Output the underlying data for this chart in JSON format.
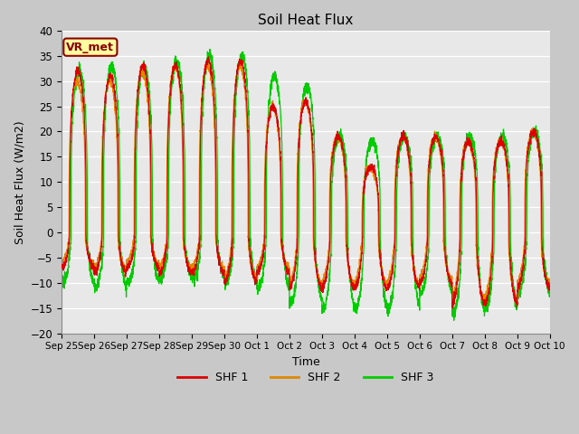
{
  "title": "Soil Heat Flux",
  "xlabel": "Time",
  "ylabel": "Soil Heat Flux (W/m2)",
  "ylim": [
    -20,
    40
  ],
  "yticks": [
    -20,
    -15,
    -10,
    -5,
    0,
    5,
    10,
    15,
    20,
    25,
    30,
    35,
    40
  ],
  "legend_label": "VR_met",
  "series_labels": [
    "SHF 1",
    "SHF 2",
    "SHF 3"
  ],
  "colors": [
    "#dd0000",
    "#dd8800",
    "#00cc00"
  ],
  "bg_color": "#c8c8c8",
  "plot_bg": "#e8e8e8",
  "n_days": 15,
  "xtick_labels": [
    "Sep 25",
    "Sep 26",
    "Sep 27",
    "Sep 28",
    "Sep 29",
    "Sep 30",
    "Oct 1",
    "Oct 2",
    "Oct 3",
    "Oct 4",
    "Oct 5",
    "Oct 6",
    "Oct 7",
    "Oct 8",
    "Oct 9",
    "Oct 10"
  ],
  "peak_amps": [
    32,
    31,
    33,
    33,
    34,
    34,
    25,
    26,
    19,
    13,
    19,
    19,
    18,
    18,
    20
  ],
  "trough_amps": [
    -7,
    -8,
    -7,
    -8,
    -8,
    -10,
    -8,
    -11,
    -11,
    -11,
    -11,
    -10,
    -14,
    -14,
    -11
  ],
  "peak_amps_shf2": [
    30,
    30,
    32,
    33,
    33,
    33,
    25,
    26,
    19,
    13,
    19,
    19,
    18,
    18,
    20
  ],
  "trough_amps_shf2": [
    -6,
    -7,
    -6,
    -7,
    -7,
    -9,
    -7,
    -10,
    -10,
    -10,
    -10,
    -9,
    -13,
    -13,
    -10
  ],
  "peak_amps_shf3": [
    32,
    33,
    33,
    34,
    35,
    35,
    31,
    29,
    19,
    18,
    19,
    19,
    19,
    19,
    20
  ],
  "trough_amps_shf3": [
    -10,
    -11,
    -10,
    -9,
    -9,
    -10,
    -11,
    -14,
    -15,
    -15,
    -15,
    -12,
    -16,
    -15,
    -12
  ],
  "phase_shf1": 0.0,
  "phase_shf2": 0.02,
  "phase_shf3": -0.04
}
